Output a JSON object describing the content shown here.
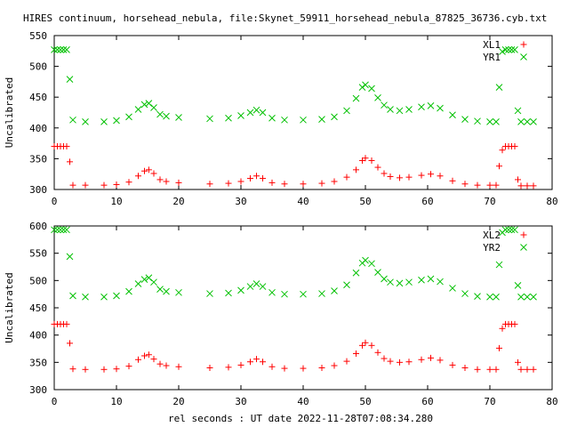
{
  "figure": {
    "title": "HIRES continuum, horsehead_nebula, file:Skynet_59911_horsehead_nebula_87825_36736.cyb.txt",
    "xlabel": "rel seconds : UT date 2022-11-28T07:08:34.280"
  },
  "chart_data": [
    {
      "type": "scatter",
      "ylabel": "Uncalibrated",
      "xlim": [
        0,
        80
      ],
      "ylim": [
        300,
        550
      ],
      "xticks": [
        0,
        10,
        20,
        30,
        40,
        50,
        60,
        70,
        80
      ],
      "yticks": [
        300,
        350,
        400,
        450,
        500,
        550
      ],
      "legend_position": "top-right",
      "series": [
        {
          "name": "XL1",
          "marker": "plus",
          "color": "#ff0000",
          "x": [
            0,
            0.5,
            1,
            1.5,
            2,
            2.5,
            3,
            5,
            8,
            10,
            12,
            13.5,
            14.5,
            15.2,
            16,
            17,
            18,
            20,
            25,
            28,
            30,
            31.5,
            32.5,
            33.5,
            35,
            37,
            40,
            43,
            45,
            47,
            48.5,
            49.5,
            50,
            51,
            52,
            53,
            54,
            55.5,
            57,
            59,
            60.5,
            62,
            64,
            66,
            68,
            70,
            71,
            71.5,
            72,
            72.5,
            73,
            73.5,
            74,
            74.5,
            75,
            76,
            77
          ],
          "y": [
            370,
            370,
            370,
            370,
            370,
            345,
            307,
            307,
            307,
            308,
            312,
            322,
            330,
            332,
            326,
            316,
            313,
            311,
            309,
            310,
            313,
            318,
            322,
            318,
            311,
            309,
            309,
            310,
            313,
            320,
            332,
            347,
            351,
            347,
            336,
            326,
            321,
            319,
            320,
            323,
            325,
            322,
            314,
            309,
            307,
            307,
            307,
            338,
            364,
            370,
            370,
            370,
            370,
            316,
            306,
            306,
            306
          ]
        },
        {
          "name": "YR1",
          "marker": "cross",
          "color": "#00c000",
          "x": [
            0,
            0.5,
            1,
            1.5,
            2,
            2.5,
            3,
            5,
            8,
            10,
            12,
            13.5,
            14.5,
            15.2,
            16,
            17,
            18,
            20,
            25,
            28,
            30,
            31.5,
            32.5,
            33.5,
            35,
            37,
            40,
            43,
            45,
            47,
            48.5,
            49.5,
            50,
            51,
            52,
            53,
            54,
            55.5,
            57,
            59,
            60.5,
            62,
            64,
            66,
            68,
            70,
            71,
            71.5,
            72,
            72.5,
            73,
            73.5,
            74,
            74.5,
            75,
            76,
            77
          ],
          "y": [
            527,
            527,
            527,
            527,
            527,
            479,
            413,
            410,
            410,
            412,
            418,
            430,
            438,
            440,
            433,
            422,
            419,
            417,
            415,
            416,
            420,
            425,
            429,
            425,
            416,
            413,
            413,
            414,
            418,
            428,
            448,
            466,
            470,
            464,
            449,
            437,
            430,
            428,
            430,
            434,
            436,
            432,
            421,
            414,
            411,
            410,
            410,
            466,
            524,
            527,
            527,
            527,
            527,
            428,
            410,
            410,
            410
          ]
        }
      ]
    },
    {
      "type": "scatter",
      "ylabel": "Uncalibrated",
      "xlim": [
        0,
        80
      ],
      "ylim": [
        300,
        600
      ],
      "xticks": [
        0,
        10,
        20,
        30,
        40,
        50,
        60,
        70,
        80
      ],
      "yticks": [
        300,
        350,
        400,
        450,
        500,
        550,
        600
      ],
      "legend_position": "top-right",
      "series": [
        {
          "name": "XL2",
          "marker": "plus",
          "color": "#ff0000",
          "x": [
            0,
            0.5,
            1,
            1.5,
            2,
            2.5,
            3,
            5,
            8,
            10,
            12,
            13.5,
            14.5,
            15.2,
            16,
            17,
            18,
            20,
            25,
            28,
            30,
            31.5,
            32.5,
            33.5,
            35,
            37,
            40,
            43,
            45,
            47,
            48.5,
            49.5,
            50,
            51,
            52,
            53,
            54,
            55.5,
            57,
            59,
            60.5,
            62,
            64,
            66,
            68,
            70,
            71,
            71.5,
            72,
            72.5,
            73,
            73.5,
            74,
            74.5,
            75,
            76,
            77
          ],
          "y": [
            420,
            420,
            420,
            420,
            420,
            385,
            338,
            337,
            337,
            338,
            343,
            355,
            362,
            364,
            356,
            347,
            344,
            342,
            340,
            341,
            345,
            351,
            356,
            351,
            342,
            339,
            339,
            340,
            344,
            352,
            366,
            381,
            386,
            381,
            368,
            357,
            352,
            350,
            351,
            355,
            358,
            354,
            345,
            340,
            337,
            337,
            337,
            376,
            412,
            420,
            420,
            420,
            420,
            350,
            337,
            337,
            337
          ]
        },
        {
          "name": "YR2",
          "marker": "cross",
          "color": "#00c000",
          "x": [
            0,
            0.5,
            1,
            1.5,
            2,
            2.5,
            3,
            5,
            8,
            10,
            12,
            13.5,
            14.5,
            15.2,
            16,
            17,
            18,
            20,
            25,
            28,
            30,
            31.5,
            32.5,
            33.5,
            35,
            37,
            40,
            43,
            45,
            47,
            48.5,
            49.5,
            50,
            51,
            52,
            53,
            54,
            55.5,
            57,
            59,
            60.5,
            62,
            64,
            66,
            68,
            70,
            71,
            71.5,
            72,
            72.5,
            73,
            73.5,
            74,
            74.5,
            75,
            76,
            77
          ],
          "y": [
            593,
            593,
            593,
            593,
            593,
            544,
            472,
            470,
            470,
            472,
            480,
            494,
            502,
            505,
            497,
            484,
            480,
            478,
            476,
            477,
            482,
            489,
            494,
            489,
            478,
            475,
            475,
            476,
            481,
            492,
            514,
            532,
            537,
            531,
            515,
            503,
            497,
            495,
            497,
            501,
            503,
            498,
            486,
            476,
            471,
            470,
            470,
            529,
            588,
            593,
            593,
            593,
            593,
            491,
            470,
            470,
            470
          ]
        }
      ]
    }
  ]
}
